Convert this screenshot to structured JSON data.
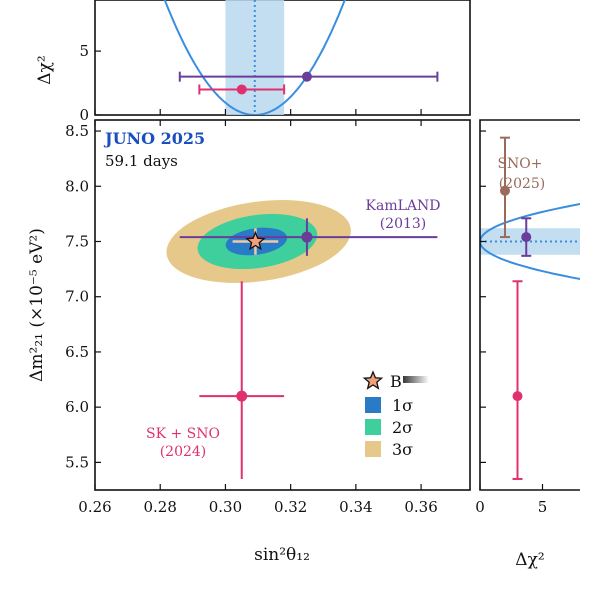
{
  "colors": {
    "juno_text": "#1a4fbf",
    "one_sigma": "#2a7bc7",
    "two_sigma": "#3ecf9c",
    "three_sigma": "#e6c98a",
    "kamland": "#6a3d9a",
    "sksno": "#e0306f",
    "snoplus": "#9a6a5a",
    "parabola": "#3a8ee0",
    "band": "#b9d8ee",
    "star": "#f2a07a"
  },
  "chart_data": [
    {
      "type": "scatter",
      "panel": "main",
      "xlabel": "sin²θ₁₂",
      "ylabel": "Δm²₂₁ (×10⁻⁵ eV²)",
      "xlim": [
        0.26,
        0.375
      ],
      "ylim": [
        5.25,
        8.6
      ],
      "xticks": [
        "0.26",
        "0.28",
        "0.30",
        "0.32",
        "0.34",
        "0.36"
      ],
      "yticks": [
        "5.5",
        "6.0",
        "6.5",
        "7.0",
        "7.5",
        "8.0",
        "8.5"
      ],
      "annotations": {
        "experiment": "JUNO 2025",
        "exposure": "59.1 days",
        "kamland_line1": "KamLAND",
        "kamland_line2": "(2013)",
        "sksno_line1": "SK + SNO",
        "sksno_line2": "(2024)"
      },
      "legend": {
        "placement": "bottom-right",
        "entries": [
          {
            "marker": "star",
            "label": "B"
          },
          {
            "marker": "square",
            "label": "1σ"
          },
          {
            "marker": "square",
            "label": "2σ"
          },
          {
            "marker": "square",
            "label": "3σ"
          }
        ]
      },
      "best_fit": {
        "x": 0.3092,
        "y": 7.5,
        "x_err": 0.007,
        "y_err": 0.12
      },
      "contours": [
        {
          "name": "3σ",
          "cx": 0.3102,
          "cy": 7.5,
          "rx": 0.0285,
          "ry": 0.36
        },
        {
          "name": "2σ",
          "cx": 0.3098,
          "cy": 7.5,
          "rx": 0.0185,
          "ry": 0.24
        },
        {
          "name": "1σ",
          "cx": 0.3095,
          "cy": 7.5,
          "rx": 0.0095,
          "ry": 0.12
        }
      ],
      "points": [
        {
          "name": "KamLAND",
          "x": 0.325,
          "y": 7.54,
          "x_err": [
            0.039,
            0.04
          ],
          "y_err": [
            0.17,
            0.17
          ]
        },
        {
          "name": "SK + SNO",
          "x": 0.305,
          "y": 6.1,
          "x_err": [
            0.013,
            0.013
          ],
          "y_err": [
            0.75,
            1.04
          ]
        }
      ]
    },
    {
      "type": "line",
      "panel": "top",
      "ylabel": "Δχ²",
      "xlim": [
        0.26,
        0.375
      ],
      "ylim": [
        0,
        9
      ],
      "yticks": [
        "0",
        "5"
      ],
      "parabola": {
        "min_x": 0.309,
        "width": 0.0092
      },
      "band": [
        0.3,
        0.318
      ],
      "points": [
        {
          "name": "KamLAND",
          "x": 0.325,
          "y": 3.0,
          "x_err": [
            0.039,
            0.04
          ]
        },
        {
          "name": "SK + SNO",
          "x": 0.305,
          "y": 2.0,
          "x_err": [
            0.013,
            0.013
          ]
        }
      ]
    },
    {
      "type": "line",
      "panel": "right",
      "xlabel": "Δχ²",
      "xlim": [
        0,
        8
      ],
      "ylim": [
        5.25,
        8.6
      ],
      "xticks": [
        "0",
        "5"
      ],
      "annotations": {
        "snoplus_line1": "SNO+",
        "snoplus_line2": "(2025)"
      },
      "parabola": {
        "min_y": 7.5,
        "width": 0.12
      },
      "band": [
        7.38,
        7.62
      ],
      "points": [
        {
          "name": "SNO+",
          "x": 2.0,
          "y": 7.96,
          "y_err": [
            0.42,
            0.48
          ]
        },
        {
          "name": "KamLAND",
          "x": 3.7,
          "y": 7.54,
          "y_err": [
            0.17,
            0.17
          ]
        },
        {
          "name": "SK + SNO",
          "x": 3.0,
          "y": 6.1,
          "y_err": [
            0.75,
            1.04
          ]
        }
      ]
    }
  ]
}
